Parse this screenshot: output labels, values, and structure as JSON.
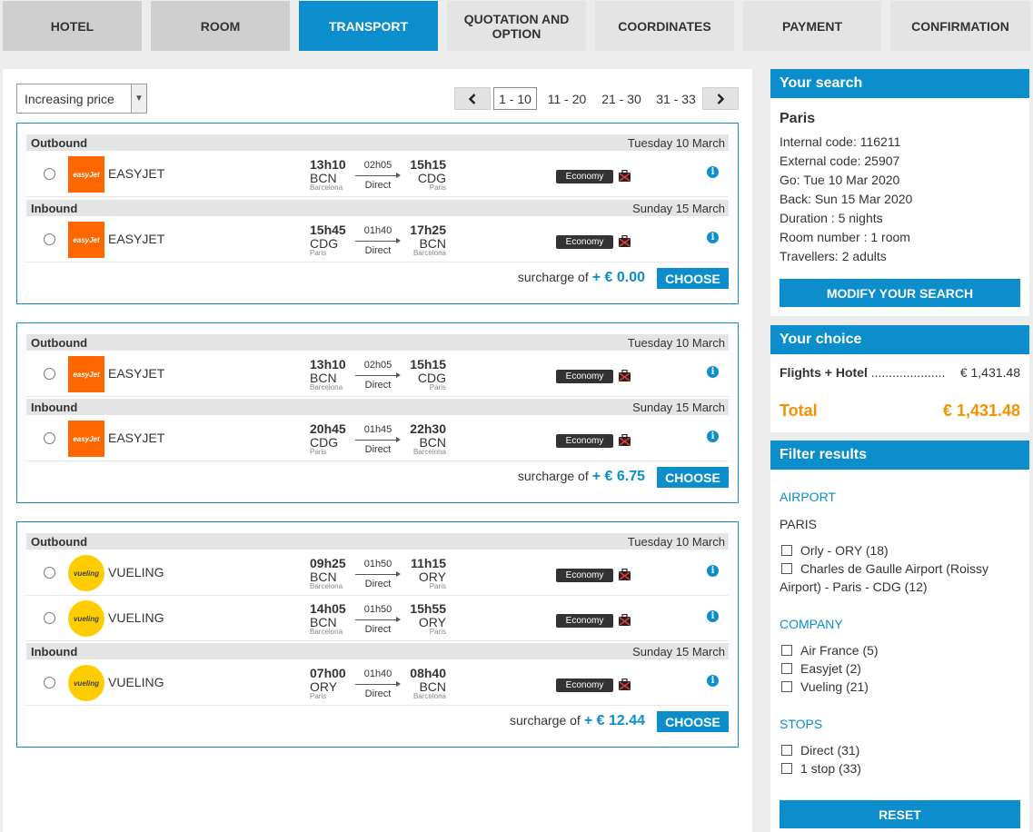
{
  "tabs": [
    {
      "label": "HOTEL"
    },
    {
      "label": "ROOM"
    },
    {
      "label": "TRANSPORT"
    },
    {
      "label": "QUOTATION AND OPTION"
    },
    {
      "label": "COORDINATES"
    },
    {
      "label": "PAYMENT"
    },
    {
      "label": "CONFIRMATION"
    }
  ],
  "sort": {
    "value": "Increasing price"
  },
  "pager": {
    "prev": "‹",
    "next": "›",
    "pages": [
      "1 - 10",
      "11 - 20",
      "21 - 30",
      "31 - 33"
    ],
    "current": "1 - 10"
  },
  "labels": {
    "outbound": "Outbound",
    "inbound": "Inbound",
    "surcharge": "surcharge of",
    "choose": "CHOOSE",
    "info": "i"
  },
  "offers": [
    {
      "outbound_date": "Tuesday 10 March",
      "inbound_date": "Sunday 15 March",
      "surcharge": "+ € 0.00",
      "flights": [
        {
          "airline": "EASYJET",
          "logo": "easyJet",
          "dep_time": "13h10",
          "dep_code": "BCN",
          "dep_city": "Barcelona",
          "duration": "02h05",
          "stops": "Direct",
          "arr_time": "15h15",
          "arr_code": "CDG",
          "arr_city": "Paris",
          "cabin": "Economy"
        },
        {
          "airline": "EASYJET",
          "logo": "easyJet",
          "dep_time": "15h45",
          "dep_code": "CDG",
          "dep_city": "Paris",
          "duration": "01h40",
          "stops": "Direct",
          "arr_time": "17h25",
          "arr_code": "BCN",
          "arr_city": "Barcelona",
          "cabin": "Economy"
        }
      ]
    },
    {
      "outbound_date": "Tuesday 10 March",
      "inbound_date": "Sunday 15 March",
      "surcharge": "+ € 6.75",
      "flights": [
        {
          "airline": "EASYJET",
          "logo": "easyJet",
          "dep_time": "13h10",
          "dep_code": "BCN",
          "dep_city": "Barcelona",
          "duration": "02h05",
          "stops": "Direct",
          "arr_time": "15h15",
          "arr_code": "CDG",
          "arr_city": "Paris",
          "cabin": "Economy"
        },
        {
          "airline": "EASYJET",
          "logo": "easyJet",
          "dep_time": "20h45",
          "dep_code": "CDG",
          "dep_city": "Paris",
          "duration": "01h45",
          "stops": "Direct",
          "arr_time": "22h30",
          "arr_code": "BCN",
          "arr_city": "Barcelona",
          "cabin": "Economy"
        }
      ]
    },
    {
      "outbound_date": "Tuesday 10 March",
      "inbound_date": "Sunday 15 March",
      "surcharge": "+ € 12.44",
      "flights": [
        {
          "airline": "VUELING",
          "logo": "vueling",
          "dep_time": "09h25",
          "dep_code": "BCN",
          "dep_city": "Barcelona",
          "duration": "01h50",
          "stops": "Direct",
          "arr_time": "11h15",
          "arr_code": "ORY",
          "arr_city": "Paris",
          "cabin": "Economy"
        },
        {
          "airline": "VUELING",
          "logo": "vueling",
          "dep_time": "14h05",
          "dep_code": "BCN",
          "dep_city": "Barcelona",
          "duration": "01h50",
          "stops": "Direct",
          "arr_time": "15h55",
          "arr_code": "ORY",
          "arr_city": "Paris",
          "cabin": "Economy"
        },
        {
          "airline": "VUELING",
          "logo": "vueling",
          "dep_time": "07h00",
          "dep_code": "ORY",
          "dep_city": "Paris",
          "duration": "01h40",
          "stops": "Direct",
          "arr_time": "08h40",
          "arr_code": "BCN",
          "arr_city": "Barcelona",
          "cabin": "Economy"
        }
      ]
    }
  ],
  "search": {
    "title": "Your search",
    "city": "Paris",
    "lines": [
      "Internal code: 116211",
      "External code: 25907",
      "Go: Tue 10 Mar 2020",
      "Back: Sun 15 Mar 2020",
      "Duration : 5 nights",
      "Room number : 1 room",
      "Travellers: 2 adults"
    ],
    "modify": "MODIFY YOUR SEARCH"
  },
  "choice": {
    "title": "Your choice",
    "item_label": "Flights + Hotel",
    "dots": ".....................",
    "item_value": "€ 1,431.48",
    "total_label": "Total",
    "total_value": "€ 1,431.48"
  },
  "filter": {
    "title": "Filter results",
    "airport_title": "AIRPORT",
    "airport_city": "PARIS",
    "airports": [
      "Orly - ORY (18)",
      "Charles de Gaulle Airport (Roissy Airport) - Paris - CDG (12)"
    ],
    "company_title": "COMPANY",
    "companies": [
      "Air France (5)",
      "Easyjet (2)",
      "Vueling (21)"
    ],
    "stops_title": "STOPS",
    "stops": [
      "Direct (31)",
      "1 stop (33)"
    ],
    "reset": "RESET"
  },
  "colors": {
    "accent": "#0b8ecb",
    "total": "#f39200",
    "easyjet": "#ff6600",
    "vueling": "#ffcc00"
  }
}
